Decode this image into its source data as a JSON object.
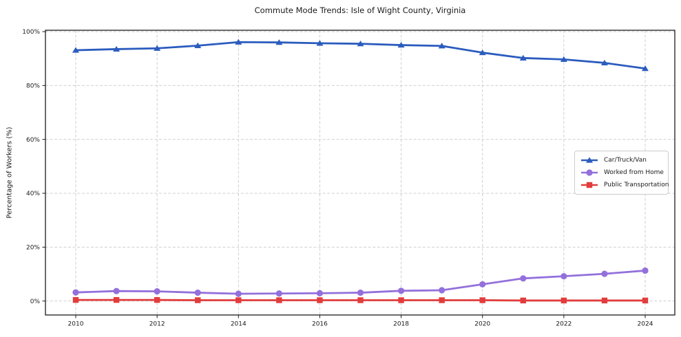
{
  "chart_data": {
    "type": "line",
    "title": "Commute Mode Trends: Isle of Wight County, Virginia",
    "xlabel": "",
    "ylabel": "Percentage of Workers (%)",
    "x": [
      2010,
      2011,
      2012,
      2013,
      2014,
      2015,
      2016,
      2017,
      2018,
      2019,
      2020,
      2021,
      2022,
      2023,
      2024
    ],
    "x_ticks": [
      2010,
      2012,
      2014,
      2016,
      2018,
      2020,
      2022,
      2024
    ],
    "x_tick_labels": [
      "2010",
      "2012",
      "2014",
      "2016",
      "2018",
      "2020",
      "2022",
      "2024"
    ],
    "y_ticks": [
      0,
      20,
      40,
      60,
      80,
      100
    ],
    "y_tick_labels": [
      "0%",
      "20%",
      "40%",
      "60%",
      "80%",
      "100%"
    ],
    "ylim": [
      -5.2,
      100.5
    ],
    "grid": true,
    "legend_position": "center-right",
    "series": [
      {
        "name": "Car/Truck/Van",
        "color": "#2b5cbe",
        "marker": "triangle",
        "values": [
          93.1,
          93.5,
          93.8,
          94.8,
          96.1,
          96.0,
          95.7,
          95.5,
          95.0,
          94.7,
          92.2,
          90.2,
          89.7,
          88.4,
          86.3
        ]
      },
      {
        "name": "Worked from Home",
        "color": "#9370db",
        "marker": "circle",
        "values": [
          3.2,
          3.7,
          3.6,
          3.1,
          2.7,
          2.8,
          2.9,
          3.1,
          3.8,
          4.0,
          6.2,
          8.4,
          9.2,
          10.1,
          11.3
        ]
      },
      {
        "name": "Public Transportation",
        "color": "#e23c3c",
        "marker": "square",
        "values": [
          0.4,
          0.4,
          0.4,
          0.3,
          0.3,
          0.3,
          0.3,
          0.3,
          0.3,
          0.3,
          0.3,
          0.2,
          0.2,
          0.2,
          0.2
        ]
      }
    ],
    "frame_color": "#1a1a1a",
    "grid_color": "#c9c9c9"
  }
}
